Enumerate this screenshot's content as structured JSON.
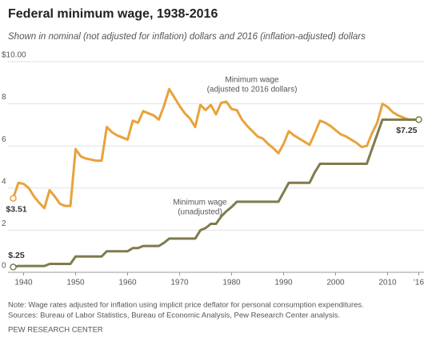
{
  "chart_data": {
    "type": "line",
    "title": "Federal minimum wage, 1938-2016",
    "subtitle": "Shown in nominal (not adjusted for inflation) dollars and 2016 (inflation-adjusted) dollars",
    "note": "Note: Wage rates adjusted for inflation using implicit price deflator for personal consumption expenditures.",
    "source": "Sources: Bureau of Labor Statistics, Bureau of Economic Analysis, Pew Research Center analysis.",
    "credit": "PEW RESEARCH CENTER",
    "x": [
      1938,
      1939,
      1940,
      1941,
      1942,
      1943,
      1944,
      1945,
      1946,
      1947,
      1948,
      1949,
      1950,
      1951,
      1952,
      1953,
      1954,
      1955,
      1956,
      1957,
      1958,
      1959,
      1960,
      1961,
      1962,
      1963,
      1964,
      1965,
      1966,
      1967,
      1968,
      1969,
      1970,
      1971,
      1972,
      1973,
      1974,
      1975,
      1976,
      1977,
      1978,
      1979,
      1980,
      1981,
      1982,
      1983,
      1984,
      1985,
      1986,
      1987,
      1988,
      1989,
      1990,
      1991,
      1992,
      1993,
      1994,
      1995,
      1996,
      1997,
      1998,
      1999,
      2000,
      2001,
      2002,
      2003,
      2004,
      2005,
      2006,
      2007,
      2008,
      2009,
      2010,
      2011,
      2012,
      2013,
      2014,
      2015,
      2016
    ],
    "xlim": [
      1937,
      2017
    ],
    "xticks": [
      1940,
      1950,
      1960,
      1970,
      1980,
      1990,
      2000,
      2010,
      {
        "value": 2016,
        "label": "'16"
      }
    ],
    "ylim": [
      0,
      10
    ],
    "yticks": [
      0,
      2,
      4,
      6,
      8,
      {
        "value": 10,
        "label": "$10.00"
      }
    ],
    "grid": true,
    "series": [
      {
        "name": "Minimum wage",
        "name_note": "(adjusted to 2016 dollars)",
        "color": "#e9a23b",
        "values": [
          3.51,
          4.25,
          4.2,
          4.0,
          3.6,
          3.3,
          3.05,
          3.9,
          3.6,
          3.25,
          3.15,
          3.15,
          5.85,
          5.5,
          5.4,
          5.35,
          5.3,
          5.3,
          6.9,
          6.65,
          6.5,
          6.4,
          6.3,
          7.2,
          7.1,
          7.65,
          7.55,
          7.45,
          7.25,
          7.9,
          8.7,
          8.3,
          7.9,
          7.55,
          7.3,
          6.9,
          7.95,
          7.7,
          7.95,
          7.5,
          8.05,
          8.1,
          7.75,
          7.7,
          7.25,
          6.95,
          6.7,
          6.45,
          6.35,
          6.1,
          5.9,
          5.65,
          6.1,
          6.7,
          6.5,
          6.35,
          6.2,
          6.05,
          6.6,
          7.2,
          7.1,
          6.95,
          6.75,
          6.55,
          6.45,
          6.3,
          6.15,
          5.95,
          6.0,
          6.6,
          7.1,
          8.0,
          7.85,
          7.6,
          7.45,
          7.35,
          7.25,
          7.25,
          7.25
        ],
        "value_labels": [
          "$3.51",
          null,
          null,
          null,
          null,
          null,
          null,
          null,
          null,
          null,
          null,
          null,
          null,
          null,
          null,
          null,
          null,
          null,
          null,
          null,
          null,
          null,
          null,
          null,
          null,
          null,
          null,
          null,
          null,
          null,
          null,
          null,
          null,
          null,
          null,
          null,
          null,
          null,
          null,
          null,
          null,
          null,
          null,
          null,
          null,
          null,
          null,
          null,
          null,
          null,
          null,
          null,
          null,
          null,
          null,
          null,
          null,
          null,
          null,
          null,
          null,
          null,
          null,
          null,
          null,
          null,
          null,
          null,
          null,
          null,
          null,
          null,
          null,
          null,
          null,
          null,
          null,
          null,
          null
        ]
      },
      {
        "name": "Minimum wage",
        "name_note": "(unadjusted)",
        "color": "#7f7b4c",
        "values": [
          0.25,
          0.3,
          0.3,
          0.3,
          0.3,
          0.3,
          0.3,
          0.4,
          0.4,
          0.4,
          0.4,
          0.4,
          0.75,
          0.75,
          0.75,
          0.75,
          0.75,
          0.75,
          1,
          1,
          1,
          1,
          1,
          1.15,
          1.15,
          1.25,
          1.25,
          1.25,
          1.25,
          1.4,
          1.6,
          1.6,
          1.6,
          1.6,
          1.6,
          1.6,
          2,
          2.1,
          2.3,
          2.3,
          2.65,
          2.9,
          3.1,
          3.35,
          3.35,
          3.35,
          3.35,
          3.35,
          3.35,
          3.35,
          3.35,
          3.35,
          3.8,
          4.25,
          4.25,
          4.25,
          4.25,
          4.25,
          4.75,
          5.15,
          5.15,
          5.15,
          5.15,
          5.15,
          5.15,
          5.15,
          5.15,
          5.15,
          5.15,
          5.85,
          6.55,
          7.25,
          7.25,
          7.25,
          7.25,
          7.25,
          7.25,
          7.25,
          7.25
        ],
        "value_labels": [
          "$.25",
          null,
          null,
          null,
          null,
          null,
          null,
          null,
          null,
          null,
          null,
          null,
          null,
          null,
          null,
          null,
          null,
          null,
          null,
          null,
          null,
          null,
          null,
          null,
          null,
          null,
          null,
          null,
          null,
          null,
          null,
          null,
          null,
          null,
          null,
          null,
          null,
          null,
          null,
          null,
          null,
          null,
          null,
          null,
          null,
          null,
          null,
          null,
          null,
          null,
          null,
          null,
          null,
          null,
          null,
          null,
          null,
          null,
          null,
          null,
          null,
          null,
          null,
          null,
          null,
          null,
          null,
          null,
          null,
          null,
          null,
          null,
          null,
          null,
          null,
          null,
          null,
          null,
          "$7.25"
        ]
      }
    ]
  }
}
